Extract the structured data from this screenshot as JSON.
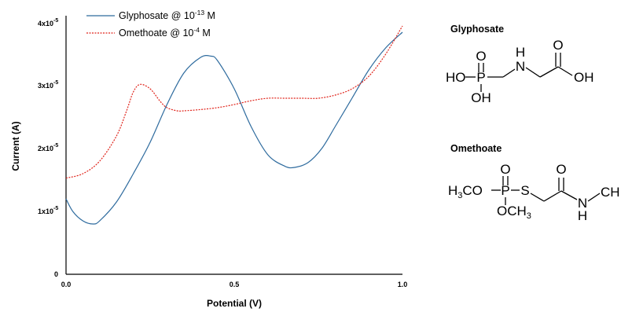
{
  "chart_data": {
    "type": "line",
    "xlabel": "Potential (V)",
    "ylabel": "Current (A)",
    "xlim": [
      0.0,
      1.0
    ],
    "ylim": [
      0,
      4e-05
    ],
    "x_ticks": [
      "0.0",
      "0.5",
      "1.0"
    ],
    "y_ticks": [
      "0",
      "1x10",
      "2x10",
      "3x10",
      "4x10"
    ],
    "y_tick_exponent": "-5",
    "legend_position": "top-left",
    "series": [
      {
        "name": "Glyphosate @ 10",
        "name_exponent": "-13",
        "name_suffix": " M",
        "color": "#2e6b9e",
        "style": "solid",
        "x": [
          0.0,
          0.02,
          0.05,
          0.08,
          0.1,
          0.15,
          0.2,
          0.25,
          0.3,
          0.35,
          0.4,
          0.43,
          0.45,
          0.5,
          0.55,
          0.6,
          0.65,
          0.68,
          0.72,
          0.76,
          0.8,
          0.85,
          0.9,
          0.95,
          1.0
        ],
        "values": [
          1.2e-05,
          1e-05,
          8.5e-06,
          8e-06,
          8.5e-06,
          1.15e-05,
          1.6e-05,
          2.1e-05,
          2.7e-05,
          3.2e-05,
          3.45e-05,
          3.47e-05,
          3.4e-05,
          2.95e-05,
          2.35e-05,
          1.9e-05,
          1.72e-05,
          1.7e-05,
          1.78e-05,
          2e-05,
          2.35e-05,
          2.8e-05,
          3.25e-05,
          3.6e-05,
          3.85e-05
        ]
      },
      {
        "name": "Omethoate @ 10",
        "name_exponent": "-4",
        "name_suffix": " M",
        "color": "#e0241b",
        "style": "dashed",
        "x": [
          0.0,
          0.05,
          0.1,
          0.15,
          0.18,
          0.2,
          0.22,
          0.25,
          0.28,
          0.3,
          0.33,
          0.35,
          0.4,
          0.45,
          0.5,
          0.55,
          0.6,
          0.65,
          0.7,
          0.75,
          0.8,
          0.85,
          0.9,
          0.95,
          1.0
        ],
        "values": [
          1.53e-05,
          1.6e-05,
          1.8e-05,
          2.2e-05,
          2.6e-05,
          2.9e-05,
          3.02e-05,
          2.95e-05,
          2.75e-05,
          2.65e-05,
          2.6e-05,
          2.6e-05,
          2.62e-05,
          2.65e-05,
          2.7e-05,
          2.76e-05,
          2.8e-05,
          2.8e-05,
          2.8e-05,
          2.8e-05,
          2.85e-05,
          2.95e-05,
          3.15e-05,
          3.5e-05,
          3.95e-05
        ]
      }
    ]
  },
  "structures": {
    "glyphosate": {
      "title": "Glyphosate",
      "atoms": [
        "O",
        "HO",
        "P",
        "OH",
        "H",
        "N",
        "O",
        "OH"
      ]
    },
    "omethoate": {
      "title": "Omethoate",
      "atoms": [
        "O",
        "H",
        "3",
        "CO",
        "P",
        "S",
        "OCH",
        "3",
        "O",
        "N",
        "H",
        "CH"
      ]
    }
  }
}
